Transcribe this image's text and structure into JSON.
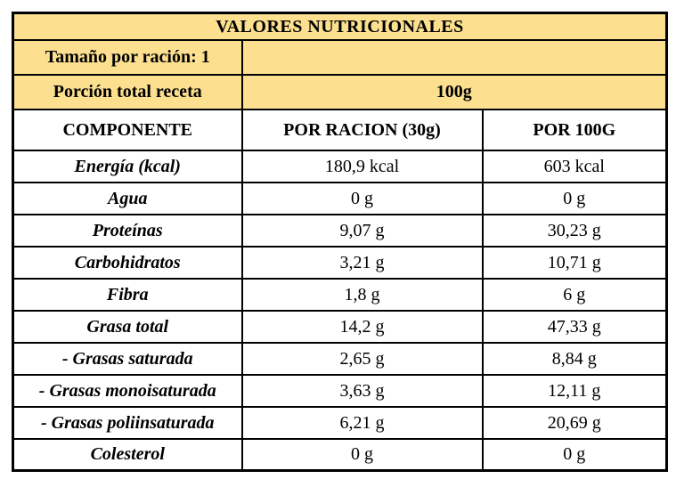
{
  "colors": {
    "highlight_bg": "#FCE08F",
    "border": "#000000",
    "text": "#000000",
    "cell_bg": "#FFFFFF"
  },
  "table": {
    "title": "VALORES NUTRICIONALES",
    "serving_size_label": "Tamaño por ración: 1",
    "serving_size_value": "",
    "portion_label": "Porción total receta",
    "portion_value": "100g",
    "columns": {
      "component": "COMPONENTE",
      "per_serving": "POR RACION (30g)",
      "per_100g": "POR 100G"
    },
    "rows": [
      {
        "component": "Energía (kcal)",
        "per_serving": "180,9 kcal",
        "per_100g": "603 kcal"
      },
      {
        "component": "Agua",
        "per_serving": "0 g",
        "per_100g": "0 g"
      },
      {
        "component": "Proteínas",
        "per_serving": "9,07 g",
        "per_100g": "30,23 g"
      },
      {
        "component": "Carbohidratos",
        "per_serving": "3,21 g",
        "per_100g": "10,71 g"
      },
      {
        "component": "Fibra",
        "per_serving": "1,8 g",
        "per_100g": "6 g"
      },
      {
        "component": "Grasa total",
        "per_serving": "14,2 g",
        "per_100g": "47,33 g"
      },
      {
        "component": "- Grasas saturada",
        "per_serving": "2,65 g",
        "per_100g": "8,84 g"
      },
      {
        "component": "- Grasas monoisaturada",
        "per_serving": "3,63 g",
        "per_100g": "12,11 g"
      },
      {
        "component": "- Grasas poliinsaturada",
        "per_serving": "6,21 g",
        "per_100g": "20,69 g"
      },
      {
        "component": "Colesterol",
        "per_serving": "0 g",
        "per_100g": "0 g"
      }
    ]
  }
}
